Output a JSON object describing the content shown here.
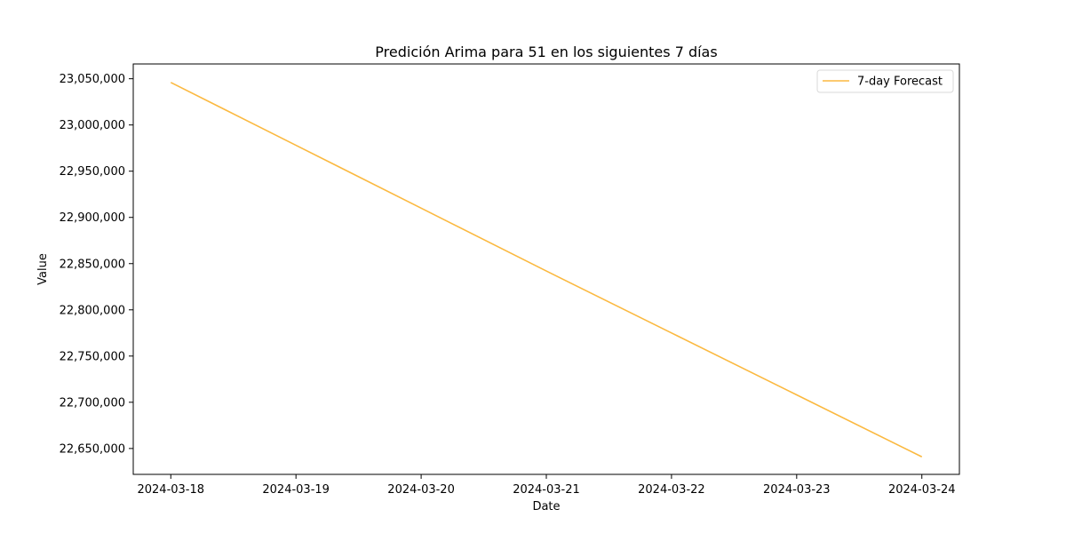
{
  "chart_data": {
    "type": "line",
    "title": "Predición Arima para 51 en los siguientes 7 días",
    "xlabel": "Date",
    "ylabel": "Value",
    "x": [
      "2024-03-18",
      "2024-03-19",
      "2024-03-20",
      "2024-03-21",
      "2024-03-22",
      "2024-03-23",
      "2024-03-24"
    ],
    "xlim": [
      "2024-03-17.7",
      "2024-03-24.3"
    ],
    "ylim": [
      22622000,
      23066000
    ],
    "ytick_values": [
      22650000,
      22700000,
      22750000,
      22800000,
      22850000,
      22900000,
      22950000,
      23000000,
      23050000
    ],
    "ytick_labels": [
      "22,650,000",
      "22,700,000",
      "22,750,000",
      "22,800,000",
      "22,850,000",
      "22,900,000",
      "22,950,000",
      "23,000,000",
      "23,050,000"
    ],
    "grid": false,
    "legend_position": "upper right",
    "series": [
      {
        "name": "7-day Forecast",
        "color": "#fbb940",
        "values": [
          23046000,
          22978000,
          22910000,
          22842000,
          22775000,
          22708000,
          22641000
        ]
      }
    ]
  }
}
